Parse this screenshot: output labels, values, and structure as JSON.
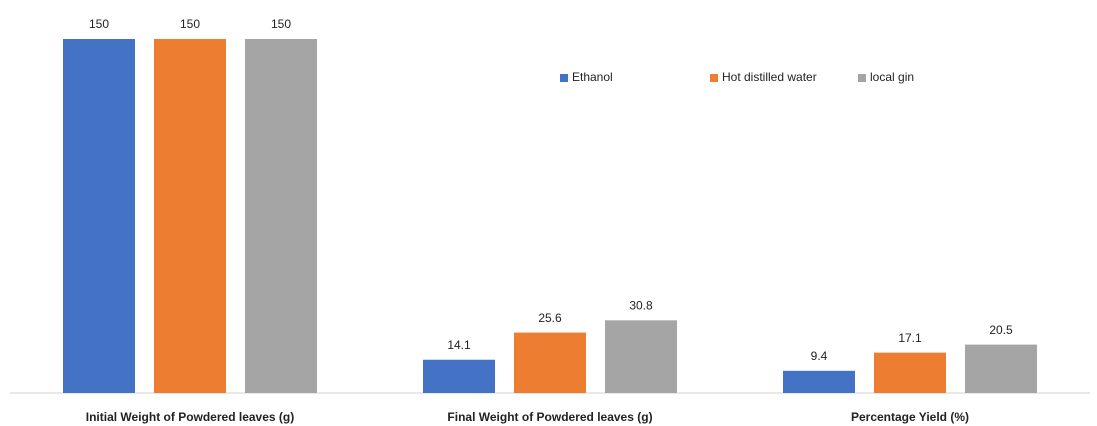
{
  "chart_data": {
    "type": "bar",
    "categories": [
      "Initial Weight of Powdered leaves (g)",
      "Final Weight of Powdered leaves (g)",
      "Percentage Yield (%)"
    ],
    "series": [
      {
        "name": "Ethanol",
        "color": "#4472c4",
        "values": [
          150,
          14.1,
          9.4
        ]
      },
      {
        "name": "Hot distilled water",
        "color": "#ed7d31",
        "values": [
          150,
          25.6,
          17.1
        ]
      },
      {
        "name": "local gin",
        "color": "#a5a5a5",
        "values": [
          150,
          30.8,
          20.5
        ]
      }
    ],
    "legend": "top-right"
  }
}
